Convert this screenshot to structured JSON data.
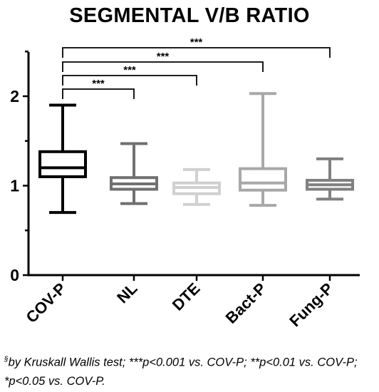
{
  "chart_data": {
    "type": "box",
    "title": "SEGMENTAL V/B RATIO",
    "xlabel": "",
    "ylabel": "",
    "ylim": [
      0,
      2.5
    ],
    "y_ticks": [
      0,
      1,
      2
    ],
    "categories": [
      "COV-P",
      "NL",
      "DTE",
      "Bact-P",
      "Fung-P"
    ],
    "boxes": [
      {
        "category": "COV-P",
        "min": 0.7,
        "q1": 1.1,
        "median": 1.2,
        "q3": 1.38,
        "max": 1.9,
        "color": "#000000"
      },
      {
        "category": "NL",
        "min": 0.8,
        "q1": 0.96,
        "median": 1.02,
        "q3": 1.09,
        "max": 1.47,
        "color": "#707070"
      },
      {
        "category": "DTE",
        "min": 0.79,
        "q1": 0.91,
        "median": 0.98,
        "q3": 1.03,
        "max": 1.18,
        "color": "#d0d0d0"
      },
      {
        "category": "Bact-P",
        "min": 0.78,
        "q1": 0.95,
        "median": 1.03,
        "q3": 1.19,
        "max": 2.03,
        "color": "#a8a8a8"
      },
      {
        "category": "Fung-P",
        "min": 0.85,
        "q1": 0.96,
        "median": 1.01,
        "q3": 1.06,
        "max": 1.3,
        "color": "#808080"
      }
    ],
    "significance": [
      {
        "from": "COV-P",
        "to": "NL",
        "label": "***"
      },
      {
        "from": "COV-P",
        "to": "DTE",
        "label": "***"
      },
      {
        "from": "COV-P",
        "to": "Bact-P",
        "label": "***"
      },
      {
        "from": "COV-P",
        "to": "Fung-P",
        "label": "***"
      }
    ]
  },
  "footnote": {
    "marker": "§",
    "text": "by Kruskall Wallis test; ***p<0.001 vs. COV-P; **p<0.01 vs. COV-P; *p<0.05 vs. COV-P."
  }
}
